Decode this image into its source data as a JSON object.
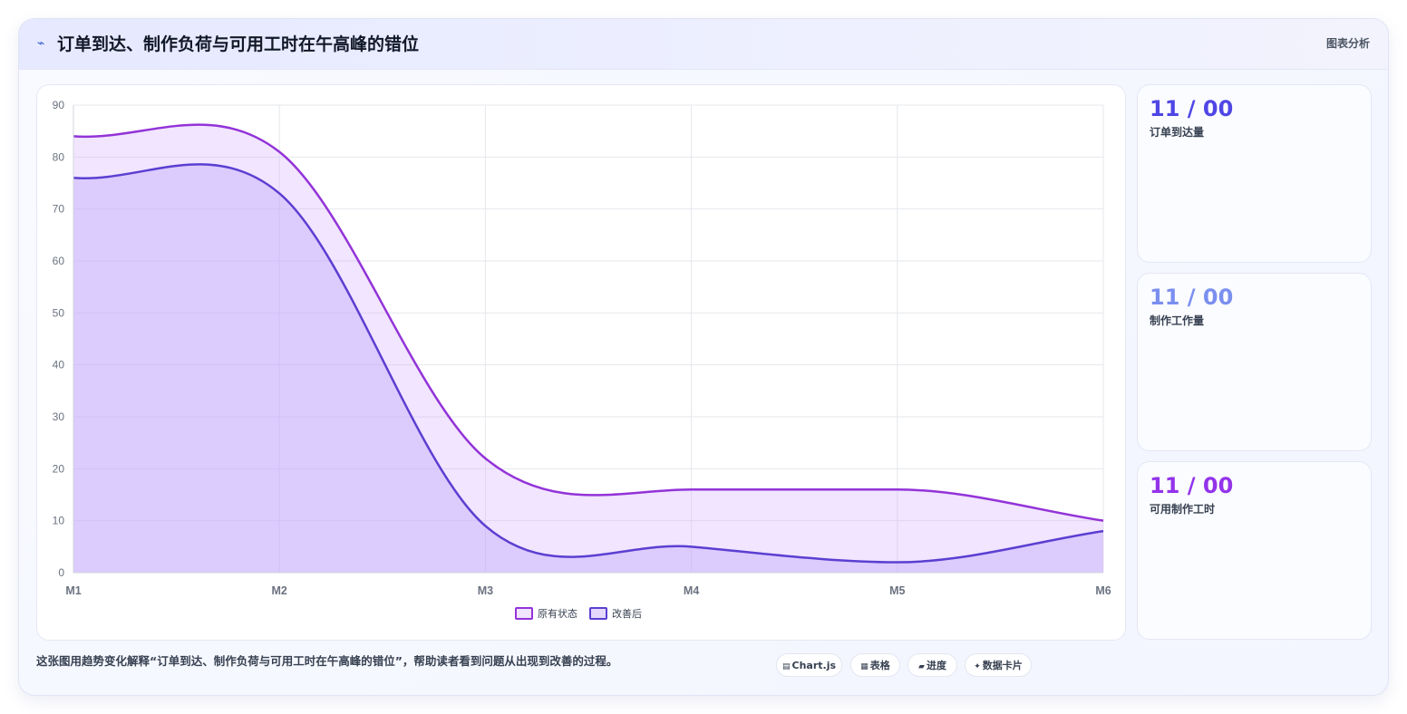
{
  "header": {
    "title_icon": "chart-trend-icon",
    "title": "订单到达、制作负荷与可用工时在午高峰的错位",
    "tag": "图表分析"
  },
  "stats": [
    {
      "value": "11 / 00",
      "label": "订单到达量",
      "color": "#4f46e5"
    },
    {
      "value": "11 / 00",
      "label": "制作工作量",
      "color": "#7b8ff0"
    },
    {
      "value": "11 / 00",
      "label": "可用制作工时",
      "color": "#9333ea"
    }
  ],
  "footer": {
    "text": "这张图用趋势变化解释“订单到达、制作负荷与可用工时在午高峰的错位”，帮助读者看到问题从出现到改善的过程。",
    "chips": [
      {
        "icon": "chart-icon",
        "glyph": "▤",
        "label": "Chart.js"
      },
      {
        "icon": "table-icon",
        "glyph": "▦",
        "label": "表格"
      },
      {
        "icon": "progress-icon",
        "glyph": "▰",
        "label": "进度"
      },
      {
        "icon": "card-icon",
        "glyph": "✦",
        "label": "数据卡片"
      }
    ]
  },
  "chart_data": {
    "type": "area",
    "categories": [
      "M1",
      "M2",
      "M3",
      "M4",
      "M5",
      "M6"
    ],
    "series": [
      {
        "name": "原有状态",
        "values": [
          84,
          81,
          22,
          16,
          16,
          10
        ],
        "color": "#9333d8",
        "fill": "rgba(216, 180, 254, 0.35)"
      },
      {
        "name": "改善后",
        "values": [
          76,
          73,
          9,
          5,
          2,
          8
        ],
        "color": "#5b3fd1",
        "fill": "rgba(196, 170, 250, 0.45)"
      }
    ],
    "ylim": [
      0,
      90
    ],
    "yticks": [
      0,
      10,
      20,
      30,
      40,
      50,
      60,
      70,
      80,
      90
    ],
    "grid": true,
    "legend": "bottom"
  }
}
